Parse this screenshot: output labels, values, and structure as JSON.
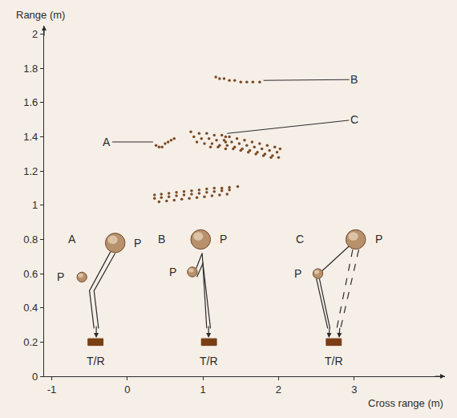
{
  "chart_data": {
    "type": "scatter",
    "x_label": "Cross range (m)",
    "y_label": "Range (m)",
    "xlim": [
      -1.1,
      4.2
    ],
    "xticks": [
      -1,
      0,
      1,
      2,
      3
    ],
    "ylim": [
      0,
      2.05
    ],
    "yticks": [
      0,
      0.2,
      0.4,
      0.6,
      0.8,
      1,
      1.2,
      1.4,
      1.6,
      1.8,
      2
    ],
    "grid": false,
    "color": "#7a4a24",
    "marker": "circle",
    "series": [
      {
        "x": [
          0.36,
          0.45,
          0.55,
          0.65,
          0.75,
          0.85,
          0.95,
          1.05,
          1.15,
          1.25,
          1.35,
          1.46
        ],
        "values": [
          1.06,
          1.065,
          1.07,
          1.075,
          1.08,
          1.085,
          1.09,
          1.095,
          1.1,
          1.1,
          1.105,
          1.11
        ]
      },
      {
        "x": [
          0.36,
          0.45,
          0.55,
          0.65,
          0.75,
          0.85,
          0.95,
          1.05,
          1.15,
          1.25,
          1.35
        ],
        "values": [
          1.04,
          1.045,
          1.05,
          1.055,
          1.06,
          1.065,
          1.07,
          1.075,
          1.08,
          1.085,
          1.09
        ]
      },
      {
        "x": [
          0.42,
          0.52,
          0.62,
          0.72,
          0.82,
          0.92,
          1.02,
          1.12,
          1.22,
          1.32
        ],
        "values": [
          1.02,
          1.025,
          1.03,
          1.035,
          1.04,
          1.045,
          1.05,
          1.055,
          1.06,
          1.065
        ]
      },
      {
        "x": [
          0.38,
          0.42,
          0.46,
          0.5,
          0.54,
          0.58,
          0.62
        ],
        "values": [
          1.35,
          1.34,
          1.34,
          1.36,
          1.37,
          1.38,
          1.39
        ]
      },
      {
        "x": [
          1.17,
          1.22,
          1.28,
          1.35,
          1.42,
          1.5,
          1.58,
          1.66,
          1.75
        ],
        "values": [
          1.75,
          1.74,
          1.74,
          1.73,
          1.73,
          1.72,
          1.72,
          1.72,
          1.72
        ]
      },
      {
        "x": [
          0.84,
          0.95,
          1.05,
          1.15,
          1.25,
          1.35,
          1.45,
          1.55,
          1.65,
          1.75,
          1.85,
          1.95,
          2.02
        ],
        "values": [
          1.43,
          1.42,
          1.42,
          1.41,
          1.41,
          1.4,
          1.39,
          1.38,
          1.37,
          1.36,
          1.35,
          1.34,
          1.33
        ]
      },
      {
        "x": [
          0.88,
          0.98,
          1.08,
          1.18,
          1.28,
          1.38,
          1.48,
          1.58,
          1.68,
          1.78,
          1.88,
          1.98
        ],
        "values": [
          1.4,
          1.39,
          1.39,
          1.38,
          1.38,
          1.37,
          1.36,
          1.35,
          1.34,
          1.33,
          1.32,
          1.31
        ]
      },
      {
        "x": [
          0.92,
          1.02,
          1.12,
          1.22,
          1.32,
          1.42,
          1.52,
          1.62,
          1.72,
          1.82,
          1.92,
          2.0
        ],
        "values": [
          1.37,
          1.36,
          1.36,
          1.35,
          1.35,
          1.34,
          1.33,
          1.32,
          1.31,
          1.3,
          1.29,
          1.28
        ]
      },
      {
        "x": [
          1.1,
          1.2,
          1.3,
          1.3,
          1.3,
          1.4,
          1.5,
          1.6,
          1.7,
          1.8,
          1.9
        ],
        "values": [
          1.34,
          1.34,
          1.33,
          1.37,
          1.4,
          1.33,
          1.32,
          1.31,
          1.3,
          1.29,
          1.28
        ]
      }
    ],
    "annotations": [
      "A",
      "B",
      "C"
    ],
    "diagrams": [
      {
        "label": "A",
        "reflectors": [
          "P",
          "P"
        ],
        "transceiver": "T/R"
      },
      {
        "label": "B",
        "reflectors": [
          "P",
          "P"
        ],
        "transceiver": "T/R"
      },
      {
        "label": "C",
        "reflectors": [
          "P",
          "P"
        ],
        "transceiver": "T/R"
      }
    ]
  }
}
